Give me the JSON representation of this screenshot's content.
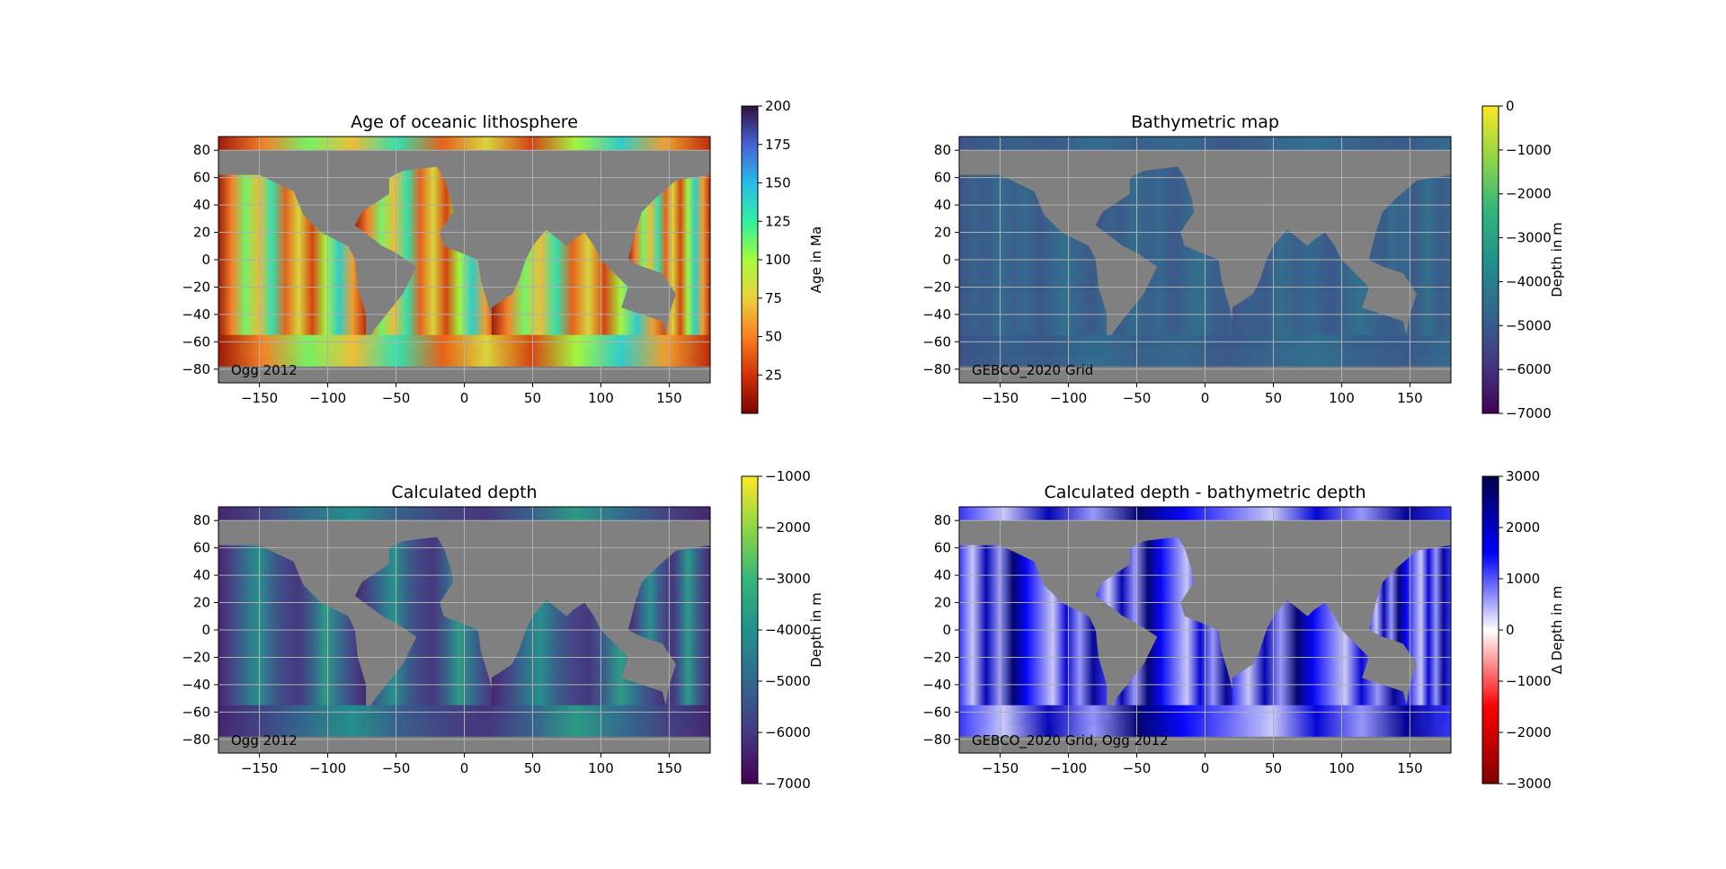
{
  "chart_data": [
    {
      "type": "heatmap",
      "title": "Age of oceanic lithosphere",
      "annotation": "Ogg 2012",
      "xlim": [
        -180,
        180
      ],
      "ylim": [
        -90,
        90
      ],
      "xticks": [
        -150,
        -100,
        -50,
        0,
        50,
        100,
        150
      ],
      "yticks": [
        -80,
        -60,
        -40,
        -20,
        0,
        20,
        40,
        60,
        80
      ],
      "grid": true,
      "background_color": "#808080",
      "colormap": "turbo_r",
      "colormap_stops": [
        "#7a0403",
        "#d23105",
        "#fb8022",
        "#edd03a",
        "#a4fc3c",
        "#2fefa1",
        "#28bceb",
        "#4662d7",
        "#30123b"
      ],
      "colorbar": {
        "label": "Age in Ma",
        "range": [
          0,
          200
        ],
        "ticks": [
          25,
          50,
          75,
          100,
          125,
          150,
          175,
          200
        ]
      }
    },
    {
      "type": "heatmap",
      "title": "Bathymetric map",
      "annotation": "GEBCO_2020 Grid",
      "xlim": [
        -180,
        180
      ],
      "ylim": [
        -90,
        90
      ],
      "xticks": [
        -150,
        -100,
        -50,
        0,
        50,
        100,
        150
      ],
      "yticks": [
        -80,
        -60,
        -40,
        -20,
        0,
        20,
        40,
        60,
        80
      ],
      "grid": true,
      "background_color": "#808080",
      "colormap": "viridis",
      "colormap_stops": [
        "#440154",
        "#443983",
        "#31688e",
        "#21918c",
        "#35b779",
        "#90d743",
        "#fde725"
      ],
      "colorbar": {
        "label": "Depth in m",
        "range": [
          -7000,
          0
        ],
        "ticks": [
          0,
          -1000,
          -2000,
          -3000,
          -4000,
          -5000,
          -6000,
          -7000
        ]
      }
    },
    {
      "type": "heatmap",
      "title": "Calculated depth",
      "annotation": "Ogg 2012",
      "xlim": [
        -180,
        180
      ],
      "ylim": [
        -90,
        90
      ],
      "xticks": [
        -150,
        -100,
        -50,
        0,
        50,
        100,
        150
      ],
      "yticks": [
        -80,
        -60,
        -40,
        -20,
        0,
        20,
        40,
        60,
        80
      ],
      "grid": true,
      "background_color": "#808080",
      "colormap": "viridis",
      "colormap_stops": [
        "#440154",
        "#443983",
        "#31688e",
        "#21918c",
        "#35b779",
        "#90d743",
        "#fde725"
      ],
      "colorbar": {
        "label": "Depth in m",
        "range": [
          -7000,
          -1000
        ],
        "ticks": [
          -1000,
          -2000,
          -3000,
          -4000,
          -5000,
          -6000,
          -7000
        ]
      }
    },
    {
      "type": "heatmap",
      "title": "Calculated depth - bathymetric depth",
      "annotation": "GEBCO_2020 Grid, Ogg 2012",
      "xlim": [
        -180,
        180
      ],
      "ylim": [
        -90,
        90
      ],
      "xticks": [
        -150,
        -100,
        -50,
        0,
        50,
        100,
        150
      ],
      "yticks": [
        -80,
        -60,
        -40,
        -20,
        0,
        20,
        40,
        60,
        80
      ],
      "grid": true,
      "background_color": "#808080",
      "colormap": "seismic_r",
      "colormap_stops": [
        "#800000",
        "#ff0000",
        "#ffffff",
        "#0000ff",
        "#00004c"
      ],
      "colorbar": {
        "label": "Δ Depth in m",
        "range": [
          -3000,
          3000
        ],
        "ticks": [
          3000,
          2000,
          1000,
          0,
          -1000,
          -2000,
          -3000
        ]
      }
    }
  ]
}
